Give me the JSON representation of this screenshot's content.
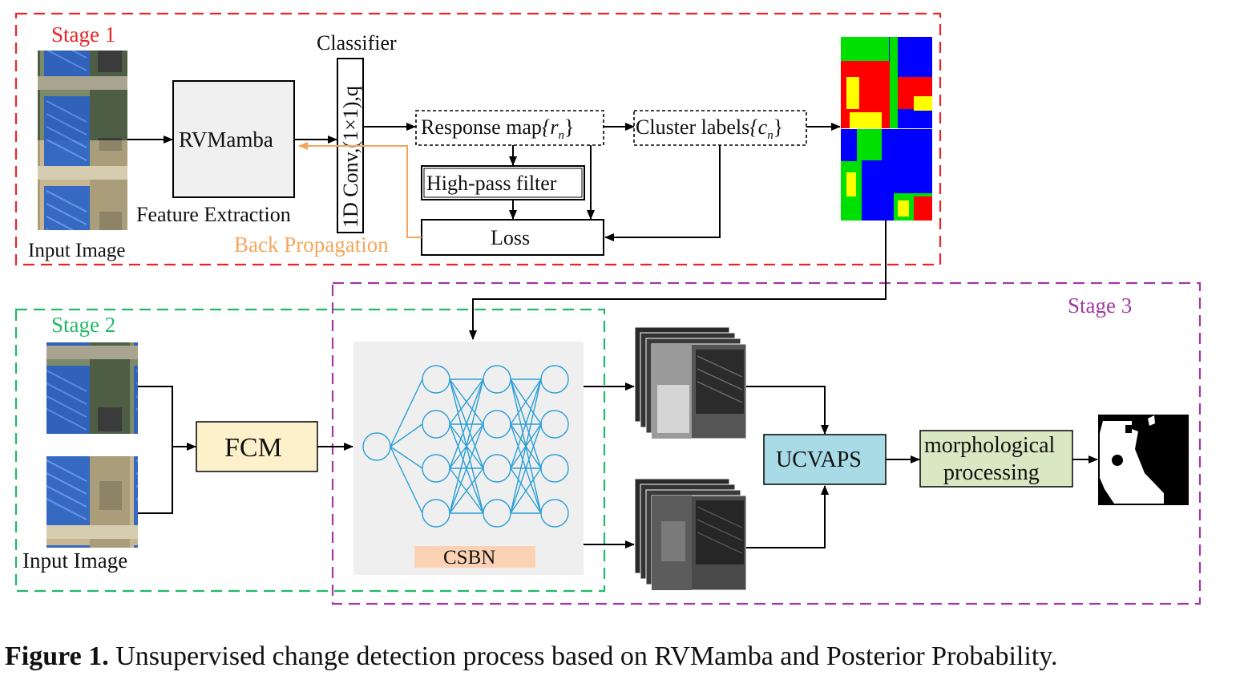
{
  "stages": {
    "stage1": "Stage 1",
    "stage2": "Stage 2",
    "stage3": "Stage 3"
  },
  "stage1": {
    "input_label": "Input Image",
    "rvmamba": "RVMamba",
    "feature_extraction": "Feature Extraction",
    "classifier": "Classifier",
    "conv_label": "1D Conv,(1×1),q",
    "response_map": "Response map",
    "response_symbol": "{r",
    "response_sub": "n",
    "response_close": "}",
    "high_pass": "High-pass filter",
    "cluster_labels": "Cluster labels",
    "cluster_symbol": "{c",
    "cluster_sub": "n",
    "cluster_close": "}",
    "loss": "Loss",
    "back_propagation": "Back Propagation"
  },
  "stage2": {
    "input_label": "Input Image",
    "fcm": "FCM",
    "csbn": "CSBN"
  },
  "stage3": {
    "ucvaps": "UCVAPS",
    "morph_line1": "morphological",
    "morph_line2": "processing"
  },
  "caption": {
    "label": "Figure 1.",
    "text": " Unsupervised change detection process based on RVMamba and Posterior Probability."
  },
  "colors": {
    "stage1": "#e8262a",
    "stage2": "#22b96b",
    "stage3": "#a03aa6",
    "back_propagation": "#f4a65c",
    "fcm_fill": "#fdf1cc",
    "ucvaps_fill": "#a9dbe6",
    "morph_fill": "#d9e8c2",
    "csbn_label_fill": "#fcd2b5",
    "network": "#2a9fd6"
  }
}
